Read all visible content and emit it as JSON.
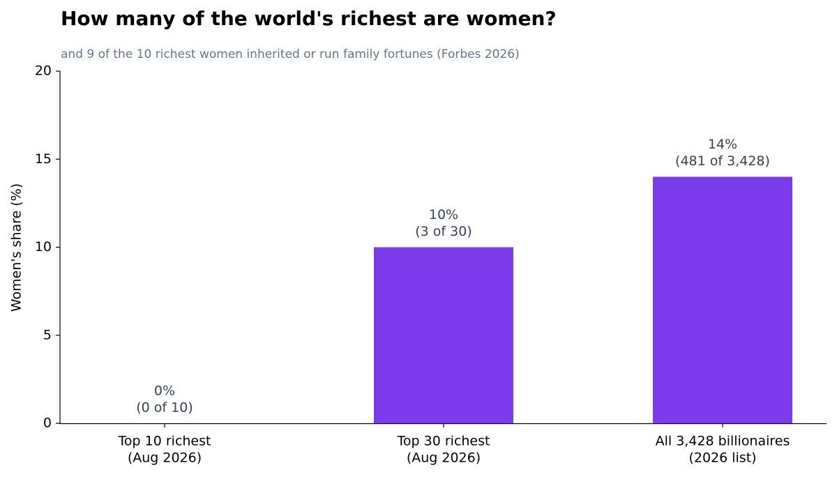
{
  "chart_data": {
    "type": "bar",
    "title": "How many of the world's richest are women?",
    "subtitle": "and 9 of the 10 richest women inherited or run family fortunes (Forbes 2026)",
    "y_label": "Women's share (%)",
    "categories": [
      [
        "Top 10 richest",
        "(Aug 2026)"
      ],
      [
        "Top 30 richest",
        "(Aug 2026)"
      ],
      [
        "All 3,428 billionaires",
        "(2026 list)"
      ]
    ],
    "values": [
      0,
      10,
      14
    ],
    "value_labels": [
      [
        "0%",
        "(0 of 10)"
      ],
      [
        "10%",
        "(3 of 30)"
      ],
      [
        "14%",
        "(481 of 3,428)"
      ]
    ],
    "color": "#7c3aed",
    "ylim": [
      0,
      20
    ],
    "yticks": [
      0,
      5,
      10,
      15,
      20
    ],
    "grid": false
  }
}
